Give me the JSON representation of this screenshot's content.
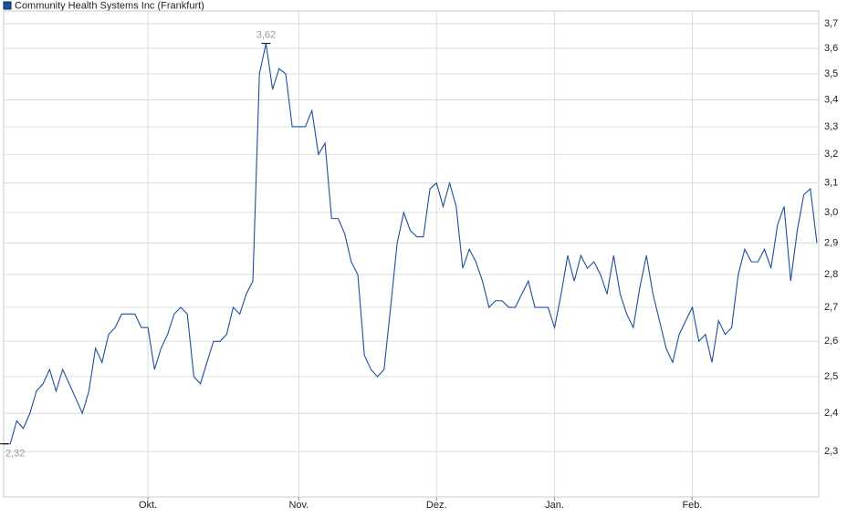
{
  "chart_data": {
    "type": "line",
    "log_scale": true,
    "grid": true,
    "legend": "top-left",
    "categories": [
      null,
      null,
      null,
      null,
      null,
      null,
      null,
      null,
      null,
      null,
      null,
      null,
      null,
      null,
      null,
      null,
      null,
      null,
      null,
      null,
      null,
      null,
      "Okt.",
      null,
      null,
      null,
      null,
      null,
      null,
      null,
      null,
      null,
      null,
      null,
      null,
      null,
      null,
      null,
      null,
      null,
      null,
      null,
      null,
      null,
      null,
      "Nov.",
      null,
      null,
      null,
      null,
      null,
      null,
      null,
      null,
      null,
      null,
      null,
      null,
      null,
      null,
      null,
      null,
      null,
      null,
      null,
      null,
      "Dez.",
      null,
      null,
      null,
      null,
      null,
      null,
      null,
      null,
      null,
      null,
      null,
      null,
      null,
      null,
      null,
      null,
      null,
      "Jan.",
      null,
      null,
      null,
      null,
      null,
      null,
      null,
      null,
      null,
      null,
      null,
      null,
      null,
      null,
      null,
      null,
      null,
      null,
      null,
      null,
      "Feb.",
      null,
      null,
      null,
      null,
      null,
      null,
      null,
      null,
      null,
      null,
      null,
      null,
      null,
      null,
      null,
      null,
      null,
      null,
      null
    ],
    "series": [
      {
        "name": "Community Health Systems Inc (Frankfurt)",
        "color": "#1c4f9c",
        "values": [
          2.32,
          2.32,
          2.38,
          2.36,
          2.4,
          2.46,
          2.48,
          2.52,
          2.46,
          2.52,
          2.48,
          2.44,
          2.4,
          2.46,
          2.58,
          2.54,
          2.62,
          2.64,
          2.68,
          2.68,
          2.68,
          2.64,
          2.64,
          2.52,
          2.58,
          2.62,
          2.68,
          2.7,
          2.68,
          2.5,
          2.48,
          2.54,
          2.6,
          2.6,
          2.62,
          2.7,
          2.68,
          2.74,
          2.78,
          3.5,
          3.62,
          3.44,
          3.52,
          3.5,
          3.3,
          3.3,
          3.3,
          3.36,
          3.2,
          3.24,
          2.98,
          2.98,
          2.93,
          2.84,
          2.8,
          2.56,
          2.52,
          2.5,
          2.52,
          2.7,
          2.9,
          3.0,
          2.94,
          2.92,
          2.92,
          3.08,
          3.1,
          3.02,
          3.1,
          3.02,
          2.82,
          2.88,
          2.84,
          2.78,
          2.7,
          2.72,
          2.72,
          2.7,
          2.7,
          2.74,
          2.78,
          2.7,
          2.7,
          2.7,
          2.64,
          2.74,
          2.86,
          2.78,
          2.86,
          2.82,
          2.84,
          2.8,
          2.74,
          2.86,
          2.74,
          2.68,
          2.64,
          2.76,
          2.86,
          2.74,
          2.66,
          2.58,
          2.54,
          2.62,
          2.66,
          2.7,
          2.6,
          2.62,
          2.54,
          2.66,
          2.62,
          2.64,
          2.8,
          2.88,
          2.84,
          2.84,
          2.88,
          2.82,
          2.96,
          3.02,
          2.78,
          2.94,
          3.06,
          3.08,
          2.9
        ]
      }
    ],
    "annotations": [
      {
        "text": "3,62",
        "value": 3.62
      },
      {
        "text": "2,32",
        "value": 2.32
      }
    ],
    "ylim": [
      2.187,
      3.753
    ],
    "yticks": [
      {
        "value": 2.3,
        "label": "2,3"
      },
      {
        "value": 2.4,
        "label": "2,4"
      },
      {
        "value": 2.5,
        "label": "2,5"
      },
      {
        "value": 2.6,
        "label": "2,6"
      },
      {
        "value": 2.7,
        "label": "2,7"
      },
      {
        "value": 2.8,
        "label": "2,8"
      },
      {
        "value": 2.9,
        "label": "2,9"
      },
      {
        "value": 3.0,
        "label": "3,0"
      },
      {
        "value": 3.1,
        "label": "3,1"
      },
      {
        "value": 3.2,
        "label": "3,2"
      },
      {
        "value": 3.3,
        "label": "3,3"
      },
      {
        "value": 3.4,
        "label": "3,4"
      },
      {
        "value": 3.5,
        "label": "3,5"
      },
      {
        "value": 3.6,
        "label": "3,6"
      },
      {
        "value": 3.7,
        "label": "3,7"
      }
    ]
  }
}
